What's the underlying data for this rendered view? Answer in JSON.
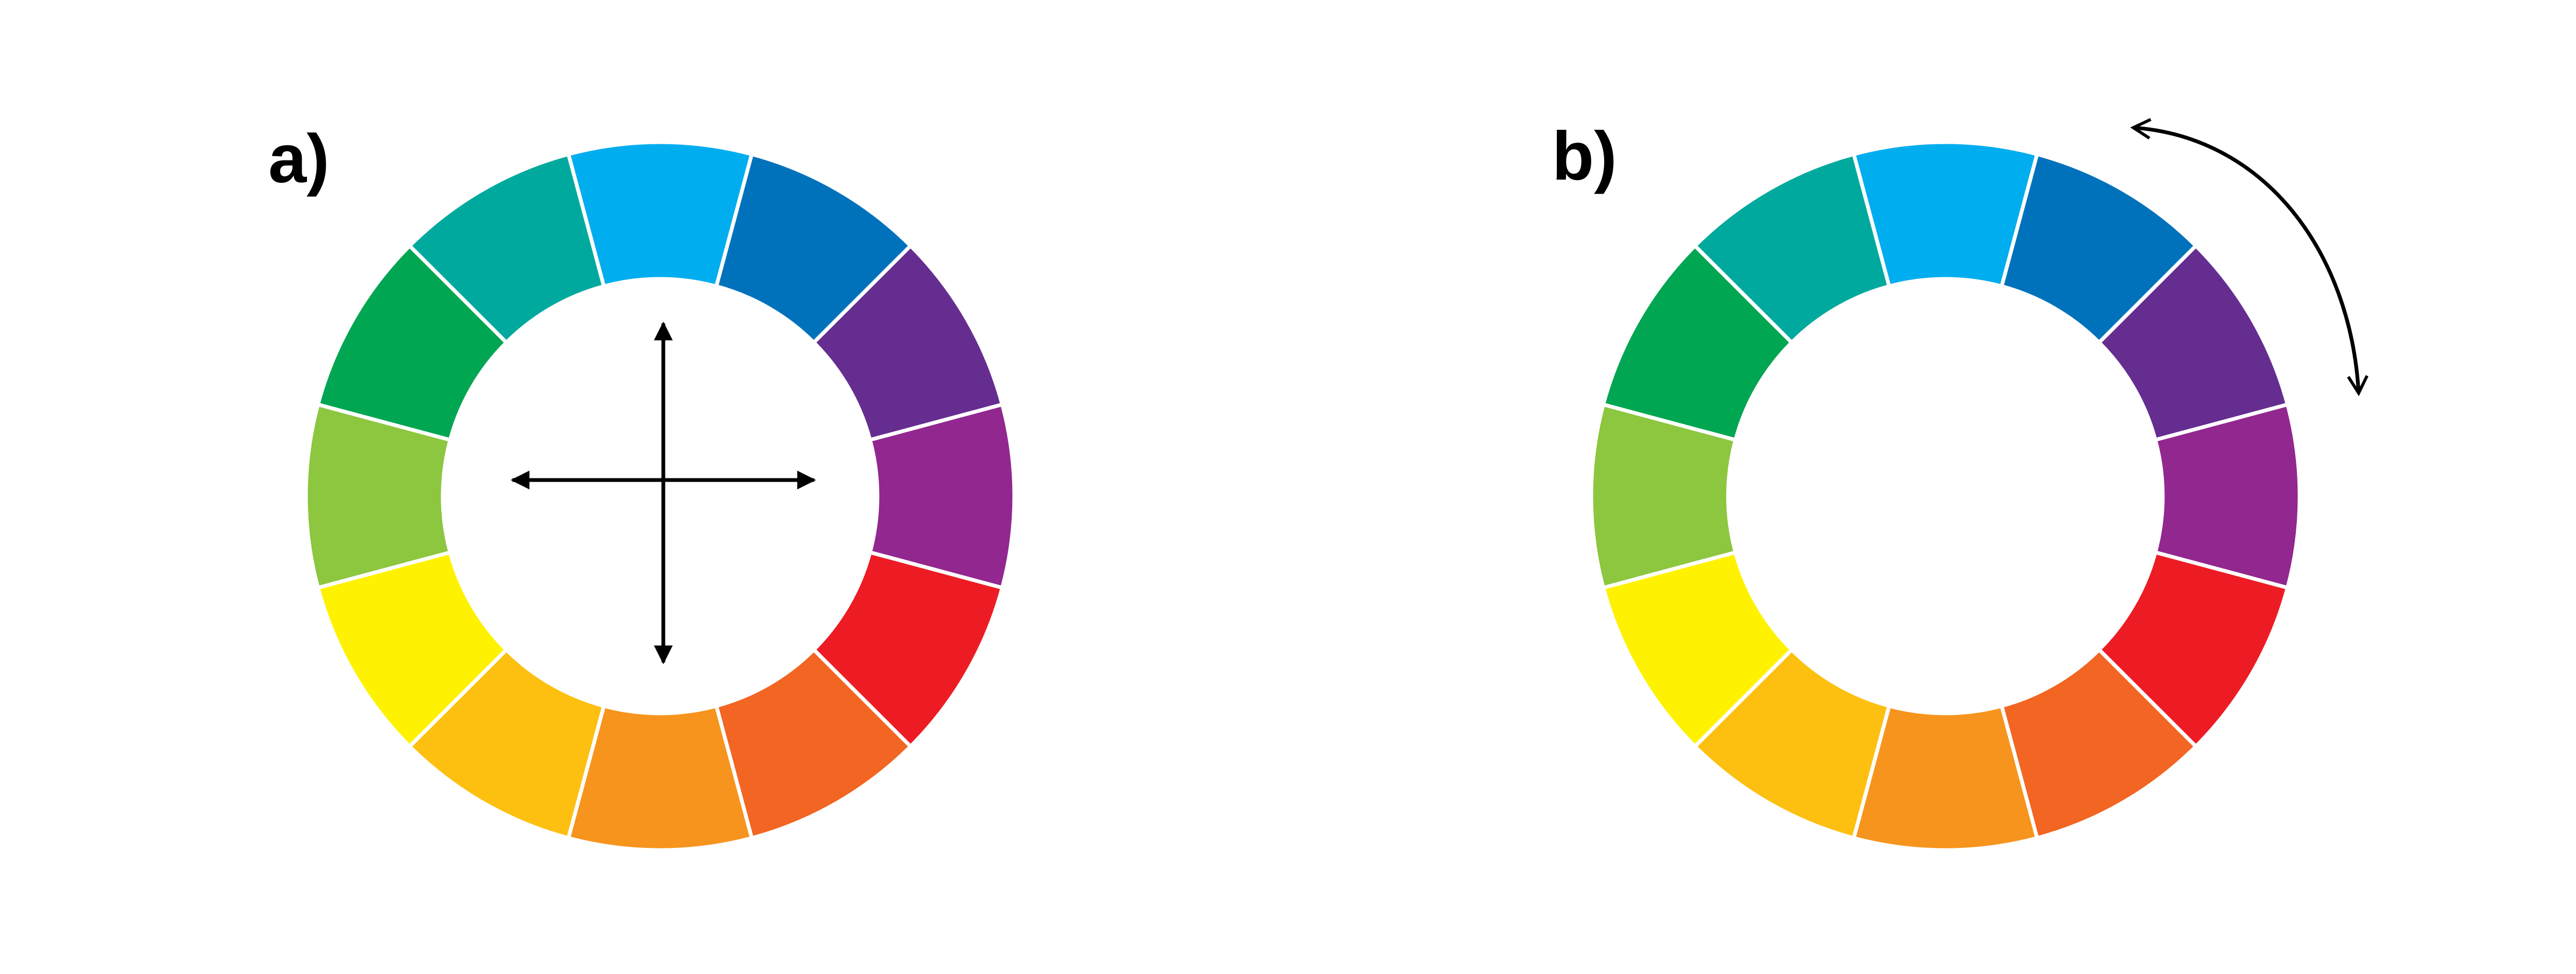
{
  "panels": [
    {
      "id": "a",
      "label": "a)",
      "wheel": {
        "segment_count": 12,
        "segments": [
          {
            "position": "top",
            "color": "#00ADEF",
            "color_name": "sky-blue"
          },
          {
            "position": "top-right-1",
            "color": "#0072BC",
            "color_name": "blue"
          },
          {
            "position": "top-right-2",
            "color": "#652D90",
            "color_name": "purple"
          },
          {
            "position": "right",
            "color": "#92278F",
            "color_name": "magenta"
          },
          {
            "position": "bottom-right-1",
            "color": "#ED1C24",
            "color_name": "red"
          },
          {
            "position": "bottom-right-2",
            "color": "#F26522",
            "color_name": "red-orange"
          },
          {
            "position": "bottom",
            "color": "#F7941D",
            "color_name": "orange"
          },
          {
            "position": "bottom-left-1",
            "color": "#FDC010",
            "color_name": "yellow-orange"
          },
          {
            "position": "bottom-left-2",
            "color": "#FFF200",
            "color_name": "yellow"
          },
          {
            "position": "left",
            "color": "#8DC63F",
            "color_name": "yellow-green"
          },
          {
            "position": "top-left-1",
            "color": "#00A651",
            "color_name": "green"
          },
          {
            "position": "top-left-2",
            "color": "#00A99D",
            "color_name": "teal"
          }
        ]
      },
      "overlay": "four-way-arrows-icon"
    },
    {
      "id": "b",
      "label": "b)",
      "wheel": {
        "segment_count": 12,
        "segments": [
          {
            "position": "top",
            "color": "#00ADEF",
            "color_name": "sky-blue"
          },
          {
            "position": "top-right-1",
            "color": "#0072BC",
            "color_name": "blue"
          },
          {
            "position": "top-right-2",
            "color": "#652D90",
            "color_name": "purple"
          },
          {
            "position": "right",
            "color": "#92278F",
            "color_name": "magenta"
          },
          {
            "position": "bottom-right-1",
            "color": "#ED1C24",
            "color_name": "red"
          },
          {
            "position": "bottom-right-2",
            "color": "#F26522",
            "color_name": "red-orange"
          },
          {
            "position": "bottom",
            "color": "#F7941D",
            "color_name": "orange"
          },
          {
            "position": "bottom-left-1",
            "color": "#FDC010",
            "color_name": "yellow-orange"
          },
          {
            "position": "bottom-left-2",
            "color": "#FFF200",
            "color_name": "yellow"
          },
          {
            "position": "left",
            "color": "#8DC63F",
            "color_name": "yellow-green"
          },
          {
            "position": "top-left-1",
            "color": "#00A651",
            "color_name": "green"
          },
          {
            "position": "top-left-2",
            "color": "#00A99D",
            "color_name": "teal"
          }
        ]
      },
      "overlay": "rotation-arrow-icon"
    }
  ],
  "colors": {
    "background": "#FFFFFF",
    "separator": "#FFFFFF",
    "arrows": "#000000",
    "label": "#000000"
  }
}
